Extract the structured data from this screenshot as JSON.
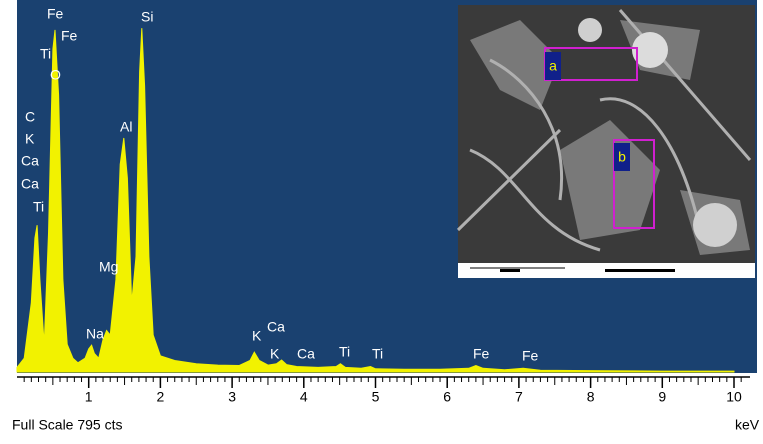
{
  "chart_data": {
    "type": "area",
    "x_label": "keV",
    "footer": "Full Scale 795 cts",
    "color": "#f2f200",
    "background": "#1a4170",
    "x": [
      0,
      0.1,
      0.2,
      0.25,
      0.28,
      0.32,
      0.38,
      0.44,
      0.5,
      0.53,
      0.58,
      0.64,
      0.7,
      0.78,
      0.85,
      0.95,
      1.0,
      1.04,
      1.08,
      1.14,
      1.2,
      1.25,
      1.3,
      1.38,
      1.44,
      1.49,
      1.54,
      1.6,
      1.66,
      1.71,
      1.74,
      1.78,
      1.84,
      1.9,
      2.0,
      2.2,
      2.5,
      2.8,
      3.1,
      3.25,
      3.31,
      3.38,
      3.5,
      3.62,
      3.69,
      3.76,
      3.9,
      4.2,
      4.45,
      4.51,
      4.58,
      4.8,
      4.93,
      5.0,
      5.4,
      5.9,
      6.3,
      6.4,
      6.5,
      6.8,
      7.06,
      7.3,
      8,
      9,
      10
    ],
    "values": [
      10,
      30,
      150,
      290,
      318,
      200,
      60,
      300,
      700,
      741,
      600,
      200,
      60,
      30,
      20,
      30,
      50,
      58,
      40,
      30,
      70,
      90,
      80,
      200,
      450,
      507,
      420,
      150,
      250,
      650,
      745,
      620,
      250,
      80,
      35,
      25,
      18,
      15,
      14,
      25,
      43,
      25,
      15,
      18,
      26,
      16,
      12,
      10,
      12,
      18,
      10,
      8,
      12,
      7,
      6,
      6,
      8,
      14,
      8,
      5,
      8,
      4,
      3,
      2,
      2
    ],
    "xlim": [
      0,
      10.2
    ],
    "ylim": [
      0,
      795
    ],
    "xticks": [
      1,
      2,
      3,
      4,
      5,
      6,
      7,
      8,
      9,
      10
    ],
    "peak_labels": [
      "Fe",
      "Fe",
      "Ti",
      "O",
      "C",
      "K",
      "Ca",
      "Ca",
      "Ti",
      "Si",
      "Al",
      "Mg",
      "Na",
      "K",
      "Ca",
      "K",
      "Ca",
      "Ti",
      "Ti",
      "Fe",
      "Fe"
    ],
    "inset_labels": [
      "a",
      "b"
    ]
  }
}
